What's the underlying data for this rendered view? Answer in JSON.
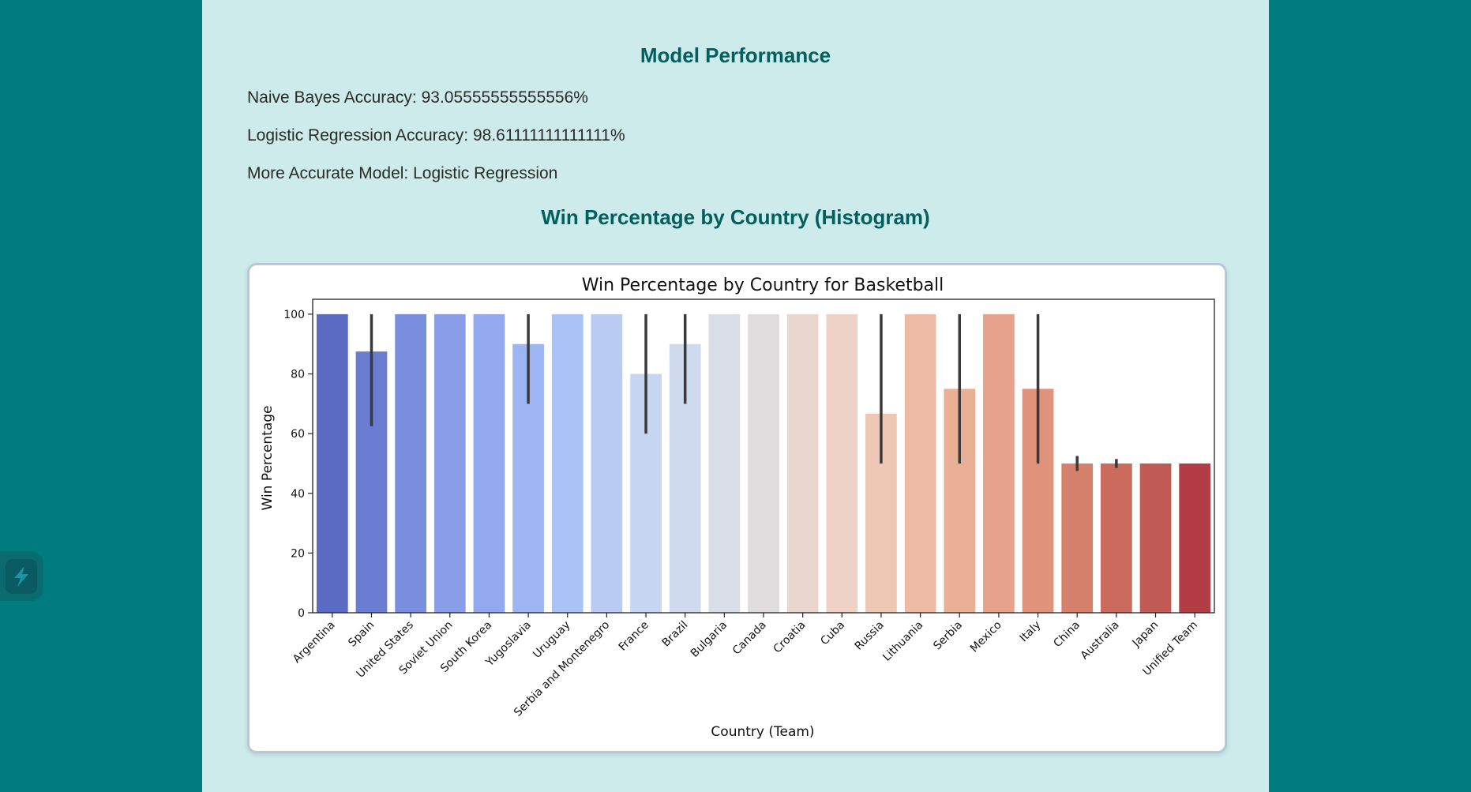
{
  "performance": {
    "heading": "Model Performance",
    "naive_bayes": "Naive Bayes Accuracy: 93.05555555555556%",
    "logistic": "Logistic Regression Accuracy: 98.61111111111111%",
    "more_accurate": "More Accurate Model: Logistic Regression"
  },
  "histogram_heading": "Win Percentage by Country (Histogram)",
  "side_widget": {
    "icon": "lightning-bolt-icon"
  },
  "chart_data": {
    "type": "bar",
    "title": "Win Percentage by Country for Basketball",
    "xlabel": "Country (Team)",
    "ylabel": "Win Percentage",
    "ylim": [
      0,
      105
    ],
    "yticks": [
      0,
      20,
      40,
      60,
      80,
      100
    ],
    "grid": false,
    "categories": [
      "Argentina",
      "Spain",
      "United States",
      "Soviet Union",
      "South Korea",
      "Yugoslavia",
      "Uruguay",
      "Serbia and Montenegro",
      "France",
      "Brazil",
      "Bulgaria",
      "Canada",
      "Croatia",
      "Cuba",
      "Russia",
      "Lithuania",
      "Serbia",
      "Mexico",
      "Italy",
      "China",
      "Australia",
      "Japan",
      "Unified Team"
    ],
    "values": [
      100,
      87.5,
      100,
      100,
      100,
      90,
      100,
      100,
      80,
      90,
      100,
      100,
      100,
      100,
      66.7,
      100,
      75,
      100,
      75,
      50,
      50,
      50,
      50
    ],
    "error_bars": [
      null,
      [
        62.5,
        100
      ],
      null,
      null,
      null,
      [
        70,
        100
      ],
      null,
      null,
      [
        60,
        100
      ],
      [
        70,
        100
      ],
      null,
      null,
      null,
      null,
      [
        50,
        100
      ],
      null,
      [
        50,
        100
      ],
      null,
      [
        50,
        100
      ],
      [
        47.5,
        52.5
      ],
      [
        48.5,
        51.5
      ],
      null,
      null
    ],
    "colors": [
      "#5b6bc4",
      "#6a7dd2",
      "#7a8ee0",
      "#8a9de8",
      "#93a9ef",
      "#9eb5f4",
      "#aac3f7",
      "#b9cbf3",
      "#c6d6f1",
      "#cfdaee",
      "#d8dde7",
      "#dedcdc",
      "#e8d6cf",
      "#eed2c6",
      "#efc7b5",
      "#edbba4",
      "#eab096",
      "#e6a28a",
      "#e0927a",
      "#d5816c",
      "#cb6b5e",
      "#c05a54",
      "#b33d47"
    ]
  }
}
